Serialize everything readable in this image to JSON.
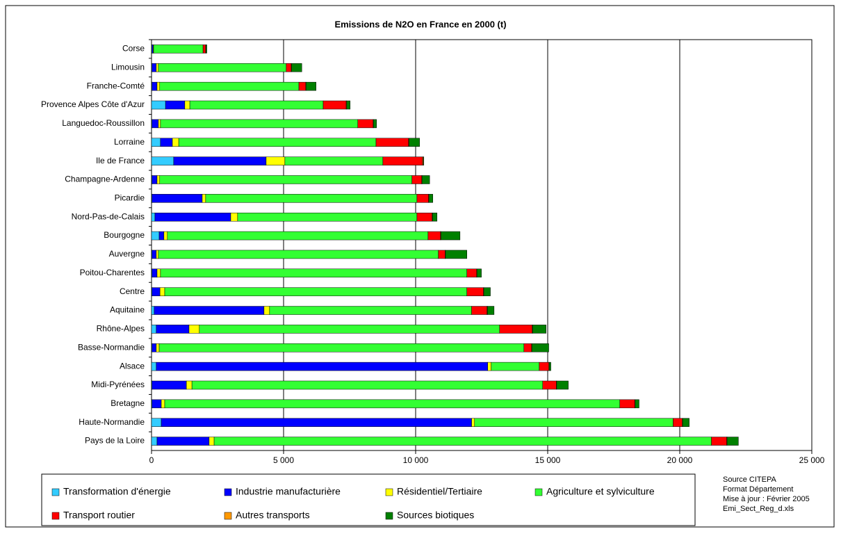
{
  "chart_data": {
    "type": "stacked_barh",
    "title": "Emissions de N2O en France en 2000 (t)",
    "categories": [
      "Corse",
      "Limousin",
      "Franche-Comté",
      "Provence Alpes Côte d'Azur",
      "Languedoc-Roussillon",
      "Lorraine",
      "Ile de France",
      "Champagne-Ardenne",
      "Picardie",
      "Nord-Pas-de-Calais",
      "Bourgogne",
      "Auvergne",
      "Poitou-Charentes",
      "Centre",
      "Aquitaine",
      "Rhône-Alpes",
      "Basse-Normandie",
      "Alsace",
      "Midi-Pyrénées",
      "Bretagne",
      "Haute-Normandie",
      "Pays de la Loire"
    ],
    "series": [
      {
        "name": "Transformation d'énergie",
        "color": "#33ccff",
        "values": [
          20,
          20,
          20,
          530,
          20,
          340,
          840,
          20,
          20,
          130,
          290,
          20,
          20,
          20,
          100,
          180,
          20,
          180,
          20,
          20,
          370,
          210
        ]
      },
      {
        "name": "Industrie manufacturière",
        "color": "#0000ff",
        "values": [
          40,
          160,
          190,
          730,
          240,
          450,
          3500,
          190,
          1900,
          2870,
          180,
          160,
          190,
          300,
          4160,
          1240,
          160,
          12550,
          1300,
          350,
          11750,
          1970
        ]
      },
      {
        "name": "Résidentiel/Tertiaire",
        "color": "#ffff00",
        "values": [
          20,
          80,
          100,
          190,
          80,
          240,
          710,
          100,
          130,
          260,
          130,
          80,
          130,
          180,
          210,
          390,
          110,
          130,
          210,
          130,
          110,
          190
        ]
      },
      {
        "name": "Agriculture et sylviculture",
        "color": "#33ff33",
        "values": [
          1870,
          4840,
          5270,
          5050,
          7470,
          7470,
          3710,
          9550,
          8000,
          6790,
          9870,
          10600,
          11600,
          11440,
          7650,
          11370,
          13810,
          1820,
          13280,
          17230,
          7520,
          18830
        ]
      },
      {
        "name": "Transport routier",
        "color": "#ff0000",
        "values": [
          100,
          190,
          260,
          870,
          580,
          1230,
          1500,
          370,
          440,
          570,
          470,
          260,
          370,
          630,
          580,
          1230,
          290,
          360,
          520,
          570,
          340,
          580
        ]
      },
      {
        "name": "Autres transports",
        "color": "#ff9900",
        "values": [
          5,
          10,
          10,
          20,
          10,
          20,
          30,
          10,
          10,
          20,
          20,
          10,
          10,
          10,
          20,
          20,
          10,
          20,
          10,
          10,
          20,
          10
        ]
      },
      {
        "name": "Sources biotiques",
        "color": "#008000",
        "values": [
          40,
          390,
          380,
          130,
          120,
          400,
          20,
          290,
          150,
          170,
          720,
          810,
          170,
          250,
          250,
          510,
          640,
          60,
          440,
          150,
          250,
          430
        ]
      }
    ],
    "xlim": [
      0,
      25000
    ],
    "xticks": [
      0,
      {
        "value": 5000,
        "label": "5 000"
      },
      {
        "value": 10000,
        "label": "10 000"
      },
      {
        "value": 15000,
        "label": "15 000"
      },
      {
        "value": 20000,
        "label": "20 000"
      },
      {
        "value": 25000,
        "label": "25 000"
      }
    ],
    "grid": true,
    "notes": [
      "Source CITEPA",
      "Format Département",
      "Mise à jour : Février 2005",
      "Emi_Sect_Reg_d.xls"
    ]
  }
}
